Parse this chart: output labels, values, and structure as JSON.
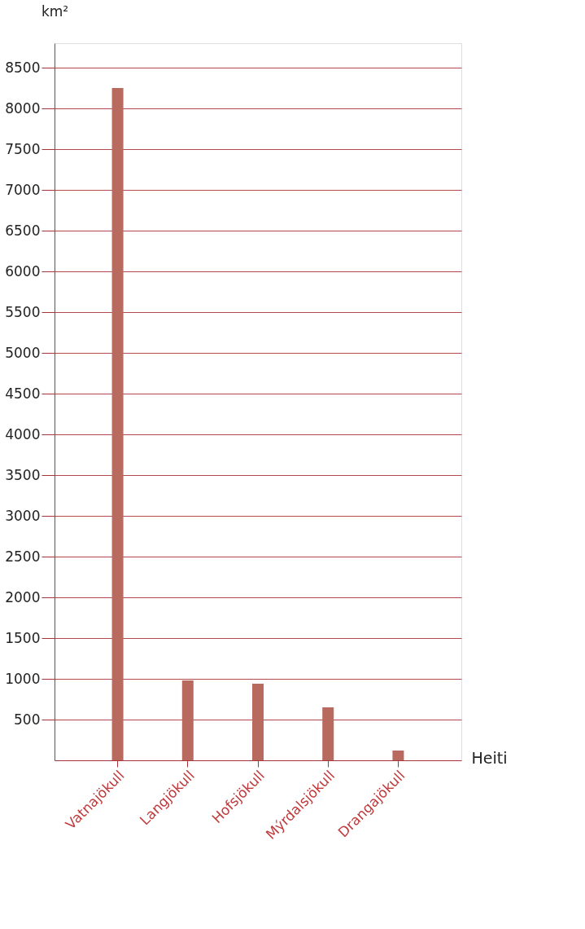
{
  "chart_data": {
    "type": "bar",
    "xlabel": "Heiti",
    "ylabel": "km²",
    "categories": [
      "Vatnajökull",
      "Langjökull",
      "Hofsjökull",
      "Mýrdalsjökull",
      "Drangajökull"
    ],
    "values": [
      8250,
      980,
      940,
      650,
      120
    ],
    "color": "#b96a5f",
    "ylim": [
      0,
      8800
    ],
    "yticks": [
      500,
      1000,
      1500,
      2000,
      2500,
      3000,
      3500,
      4000,
      4500,
      5000,
      5500,
      6000,
      6500,
      7000,
      7500,
      8000,
      8500
    ],
    "grid": "y"
  }
}
